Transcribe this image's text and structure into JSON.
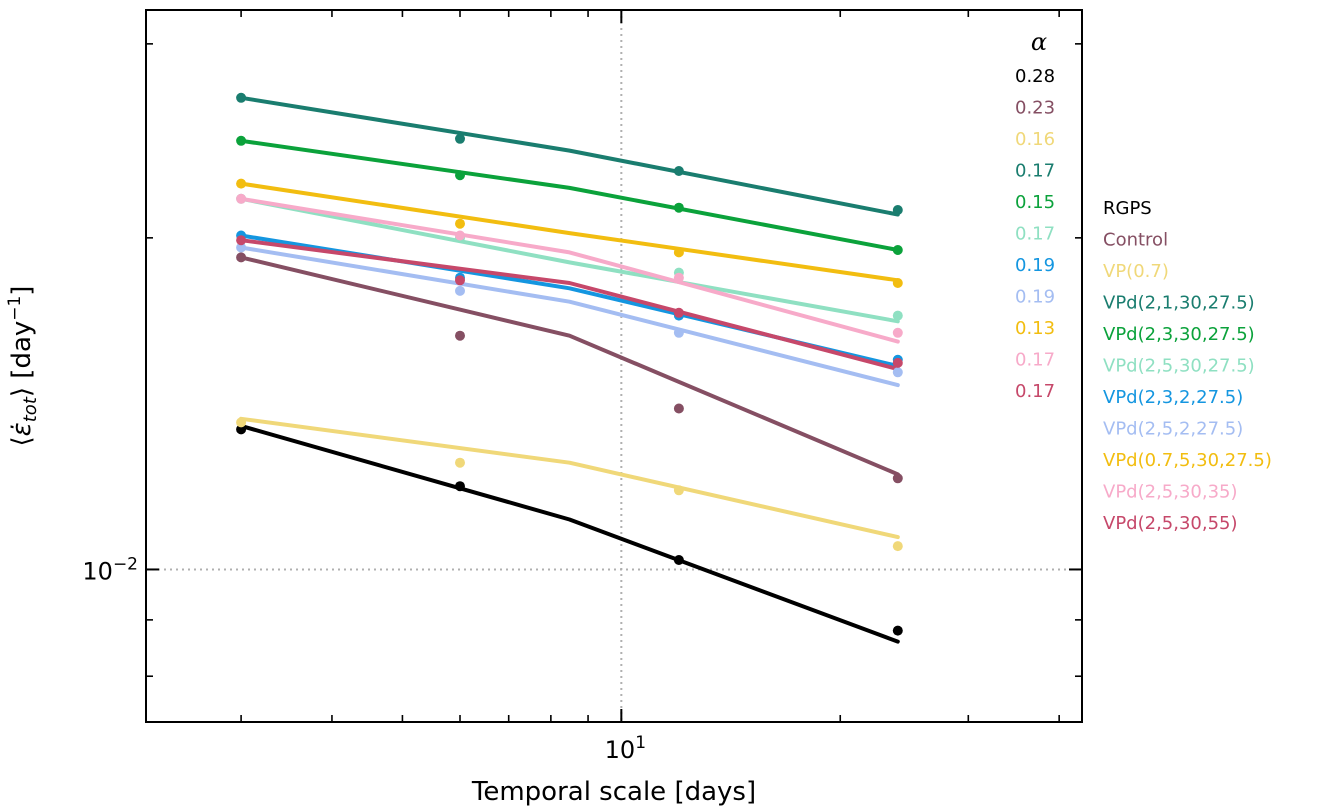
{
  "chart_data": {
    "type": "line",
    "xlabel": "Temporal scale [days]",
    "ylabel_parts": {
      "open": "⟨",
      "symbol": "ε̇",
      "sub": "tot",
      "close": "⟩ [day",
      "sup": "−1",
      "end": "]"
    },
    "xscale": "log",
    "yscale": "log",
    "xlim": [
      2.22,
      43
    ],
    "ylim": [
      0.00727,
      0.0322
    ],
    "grid": "dotted at 10^1 and 10^-2",
    "x_tick_labels": [
      {
        "value": 10,
        "base": "10",
        "exp": "1"
      }
    ],
    "y_tick_labels": [
      {
        "value": 0.01,
        "base": "10",
        "exp": "−2"
      }
    ],
    "alpha_header": "α",
    "legend_placement": "right, outside plot",
    "x": [
      3,
      6,
      12,
      24
    ],
    "series": [
      {
        "name": "RGPS",
        "alpha": "0.28",
        "color": "#000000",
        "points": [
          0.0134,
          0.0119,
          0.0102,
          0.0088
        ],
        "fit": [
          0.0135,
          0.0111,
          0.0086
        ]
      },
      {
        "name": "Control",
        "alpha": "0.23",
        "color": "#854f63",
        "points": [
          0.0192,
          0.0163,
          0.014,
          0.0121
        ],
        "fit": [
          0.0192,
          0.0163,
          0.0122
        ]
      },
      {
        "name": "VP(0.7)",
        "alpha": "0.16",
        "color": "#f0d879",
        "points": [
          0.0136,
          0.0125,
          0.0118,
          0.0105
        ],
        "fit": [
          0.0137,
          0.0125,
          0.0107
        ]
      },
      {
        "name": "VPd(2,1,30,27.5)",
        "alpha": "0.17",
        "color": "#1a7d6f",
        "points": [
          0.0268,
          0.0246,
          0.023,
          0.0212
        ],
        "fit": [
          0.0268,
          0.024,
          0.021
        ]
      },
      {
        "name": "VPd(2,3,30,27.5)",
        "alpha": "0.15",
        "color": "#0ba23b",
        "points": [
          0.0245,
          0.0228,
          0.0213,
          0.0195
        ],
        "fit": [
          0.0245,
          0.0222,
          0.0195
        ]
      },
      {
        "name": "VPd(2,5,30,27.5)",
        "alpha": "0.17",
        "color": "#8fe0c2",
        "points": [
          0.0217,
          0.02,
          0.0186,
          0.017
        ],
        "fit": [
          0.0217,
          0.019,
          0.0168
        ]
      },
      {
        "name": "VPd(2,3,2,27.5)",
        "alpha": "0.19",
        "color": "#1496e0",
        "points": [
          0.0201,
          0.0184,
          0.017,
          0.0155
        ],
        "fit": [
          0.0201,
          0.018,
          0.0153
        ]
      },
      {
        "name": "VPd(2,5,2,27.5)",
        "alpha": "0.19",
        "color": "#a4bdf2",
        "points": [
          0.0196,
          0.0179,
          0.0164,
          0.0151
        ],
        "fit": [
          0.0196,
          0.0175,
          0.0147
        ]
      },
      {
        "name": "VPd(0.7,5,30,27.5)",
        "alpha": "0.13",
        "color": "#f2bd10",
        "points": [
          0.0224,
          0.0206,
          0.0194,
          0.0182
        ],
        "fit": [
          0.0224,
          0.0202,
          0.0183
        ]
      },
      {
        "name": "VPd(2,5,30,35)",
        "alpha": "0.17",
        "color": "#f7aac9",
        "points": [
          0.0217,
          0.0201,
          0.0184,
          0.0164
        ],
        "fit": [
          0.0217,
          0.0194,
          0.0161
        ]
      },
      {
        "name": "VPd(2,5,30,55)",
        "alpha": "0.17",
        "color": "#c6486a",
        "points": [
          0.0199,
          0.0183,
          0.0171,
          0.0154
        ],
        "fit": [
          0.0199,
          0.0182,
          0.0152
        ]
      }
    ]
  }
}
